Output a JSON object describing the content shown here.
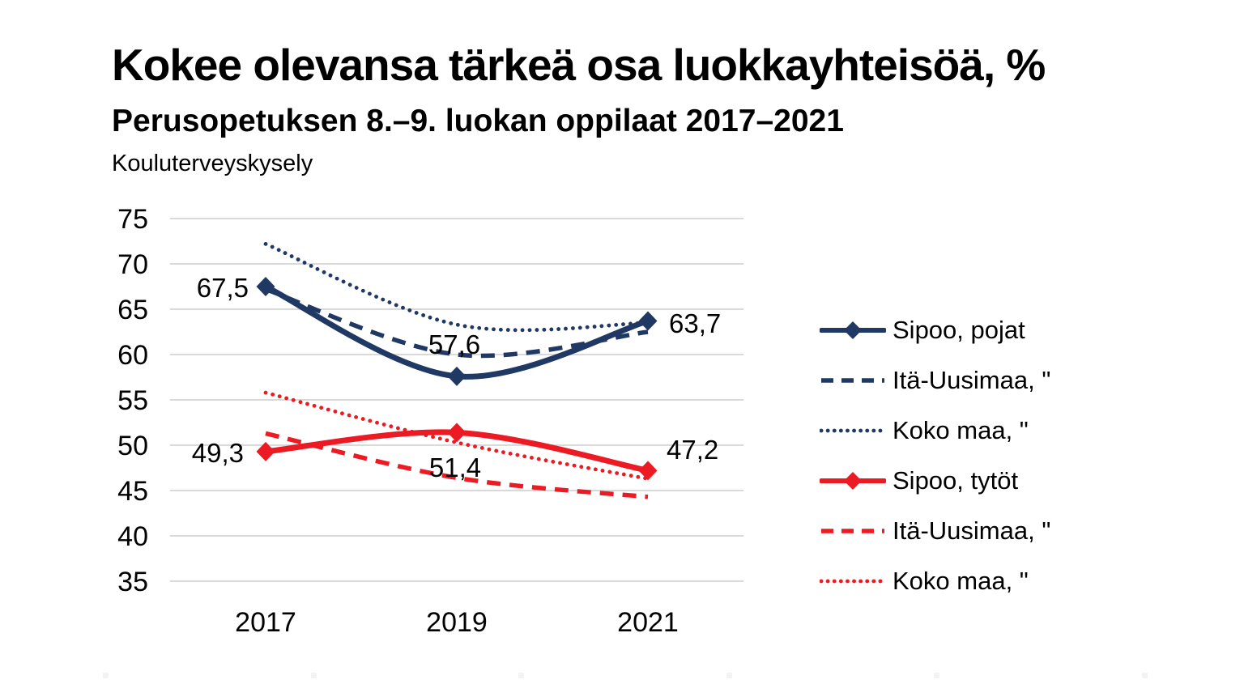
{
  "header": {
    "title": "Kokee olevansa tärkeä osa luokkayhteisöä, %",
    "subtitle": "Perusopetuksen 8.–9. luokan oppilaat 2017–2021",
    "source": "Kouluterveyskysely"
  },
  "chart_data": {
    "type": "line",
    "title": "Kokee olevansa tärkeä osa luokkayhteisöä, %",
    "subtitle": "Perusopetuksen 8.–9. luokan oppilaat 2017–2021",
    "source": "Kouluterveyskysely",
    "categories": [
      "2017",
      "2019",
      "2021"
    ],
    "ylim": [
      35,
      75
    ],
    "y_ticks": [
      75,
      70,
      65,
      60,
      55,
      50,
      45,
      40,
      35
    ],
    "grid": "horizontal-gridlines-on",
    "legend_position": "right",
    "decimal_separator": ",",
    "colors": {
      "navy": "#1f3864",
      "red": "#ec1b23",
      "gridline": "#d9d9d9",
      "text": "#000000"
    },
    "series": [
      {
        "name": "Sipoo, pojat",
        "color": "#1f3864",
        "line": "solid",
        "marker": "diamond",
        "values": [
          67.5,
          57.6,
          63.7
        ],
        "data_labels": [
          "67,5",
          "57,6",
          "63,7"
        ]
      },
      {
        "name": "Itä-Uusimaa, \"",
        "color": "#1f3864",
        "line": "dashed",
        "marker": "none",
        "values": [
          67.2,
          60.0,
          62.5
        ],
        "data_labels": []
      },
      {
        "name": "Koko maa, \"",
        "color": "#1f3864",
        "line": "dotted",
        "marker": "none",
        "values": [
          72.2,
          63.3,
          63.5
        ],
        "data_labels": []
      },
      {
        "name": "Sipoo, tytöt",
        "color": "#ec1b23",
        "line": "solid",
        "marker": "diamond",
        "values": [
          49.3,
          51.4,
          47.2
        ],
        "data_labels": [
          "49,3",
          "51,4",
          "47,2"
        ]
      },
      {
        "name": "Itä-Uusimaa, \"",
        "color": "#ec1b23",
        "line": "dashed",
        "marker": "none",
        "values": [
          51.3,
          46.4,
          44.3
        ],
        "data_labels": []
      },
      {
        "name": "Koko maa, \"",
        "color": "#ec1b23",
        "line": "dotted",
        "marker": "none",
        "values": [
          55.8,
          50.3,
          46.3
        ],
        "data_labels": []
      }
    ]
  }
}
